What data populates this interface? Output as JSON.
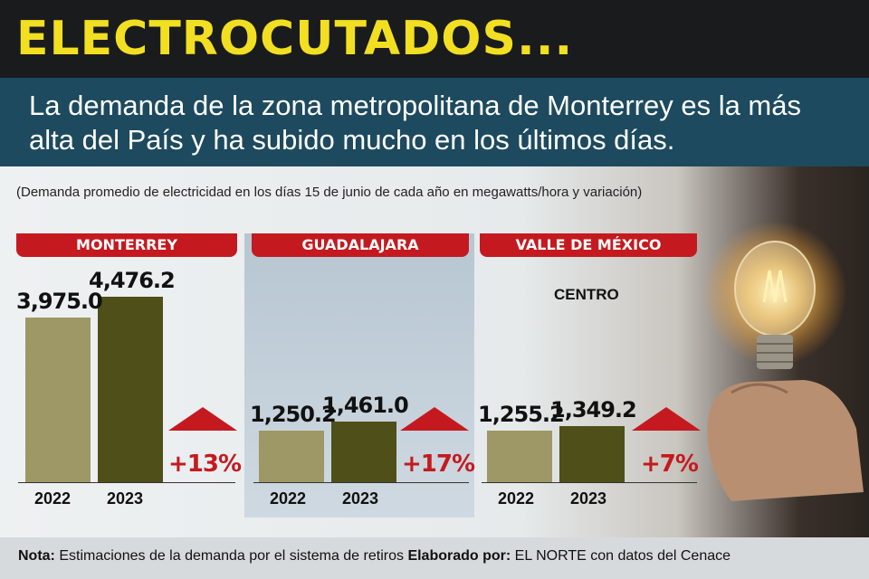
{
  "header": {
    "title": "ELECTROCUTADOS...",
    "subtitle": "La demanda de la zona metropolitana de Monterrey es la más alta del País y ha subido mucho en los últimos días."
  },
  "caption": "(Demanda promedio de electricidad en los días 15 de junio de cada año en megawatts/hora y variación)",
  "colors": {
    "title": "#f2df21",
    "accent_red": "#c41a1f",
    "bar_2022": "#9d9865",
    "bar_2023": "#4f4f1a",
    "banner_blue": "#1d4a5e"
  },
  "icons": [
    "up-arrow-icon",
    "light-bulb-image"
  ],
  "chart_data": [
    {
      "type": "bar",
      "title": "MONTERREY",
      "categories": [
        "2022",
        "2023"
      ],
      "values": [
        3975.0,
        4476.2
      ],
      "value_labels": [
        "3,975.0",
        "4,476.2"
      ],
      "change": "+13%"
    },
    {
      "type": "bar",
      "title": "GUADALAJARA",
      "categories": [
        "2022",
        "2023"
      ],
      "values": [
        1250.2,
        1461.0
      ],
      "value_labels": [
        "1,250.2",
        "1,461.0"
      ],
      "change": "+17%"
    },
    {
      "type": "bar",
      "title": "VALLE DE MÉXICO",
      "subtitle": "CENTRO",
      "categories": [
        "2022",
        "2023"
      ],
      "values": [
        1255.2,
        1349.2
      ],
      "value_labels": [
        "1,255.2",
        "1,349.2"
      ],
      "change": "+7%"
    }
  ],
  "footer": {
    "note_label": "Nota:",
    "note_text": "Estimaciones de la demanda por el sistema de retiros",
    "credit_label": "Elaborado por:",
    "credit_text": "EL NORTE con datos del Cenace"
  }
}
